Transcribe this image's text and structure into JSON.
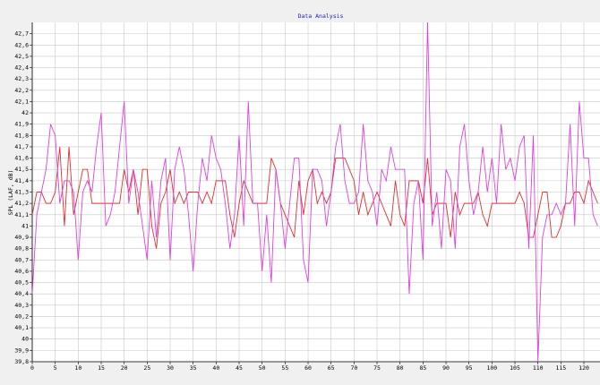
{
  "chart_data": {
    "type": "line",
    "title": "Data Analysis",
    "y_label": "SPL (LAF, dB)",
    "x": [
      0,
      1,
      2,
      3,
      4,
      5,
      6,
      7,
      8,
      9,
      10,
      11,
      12,
      13,
      14,
      15,
      16,
      17,
      18,
      19,
      20,
      21,
      22,
      23,
      24,
      25,
      26,
      27,
      28,
      29,
      30,
      31,
      32,
      33,
      34,
      35,
      36,
      37,
      38,
      39,
      40,
      41,
      42,
      43,
      44,
      45,
      46,
      47,
      48,
      49,
      50,
      51,
      52,
      53,
      54,
      55,
      56,
      57,
      58,
      59,
      60,
      61,
      62,
      63,
      64,
      65,
      66,
      67,
      68,
      69,
      70,
      71,
      72,
      73,
      74,
      75,
      76,
      77,
      78,
      79,
      80,
      81,
      82,
      83,
      84,
      85,
      86,
      87,
      88,
      89,
      90,
      91,
      92,
      93,
      94,
      95,
      96,
      97,
      98,
      99,
      100,
      101,
      102,
      103,
      104,
      105,
      106,
      107,
      108,
      109,
      110,
      111,
      112,
      113,
      114,
      115,
      116,
      117,
      118,
      119,
      120,
      121,
      122,
      123
    ],
    "series": [
      {
        "color": "#e040e0",
        "values": [
          40.4,
          41.1,
          41.3,
          41.5,
          41.9,
          41.8,
          41.2,
          41.4,
          41.4,
          41.3,
          40.7,
          41.3,
          41.4,
          41.3,
          41.7,
          42.0,
          41.0,
          41.1,
          41.3,
          41.7,
          42.1,
          41.2,
          41.5,
          41.3,
          41.0,
          40.7,
          41.4,
          40.9,
          41.4,
          41.6,
          40.7,
          41.5,
          41.7,
          41.5,
          41.1,
          40.6,
          41.2,
          41.6,
          41.4,
          41.8,
          41.6,
          41.5,
          41.2,
          40.8,
          41.1,
          41.8,
          41.0,
          42.1,
          41.2,
          41.2,
          40.6,
          41.1,
          40.5,
          41.5,
          41.2,
          40.8,
          41.2,
          41.6,
          41.6,
          40.7,
          40.5,
          41.5,
          41.5,
          41.4,
          41.0,
          41.3,
          41.7,
          41.9,
          41.4,
          41.2,
          41.2,
          41.3,
          41.9,
          41.4,
          41.3,
          41.0,
          41.5,
          41.4,
          41.7,
          41.5,
          41.5,
          41.5,
          40.4,
          41.2,
          41.4,
          40.7,
          42.8,
          41.0,
          41.3,
          40.8,
          41.5,
          41.4,
          40.8,
          41.7,
          41.9,
          41.4,
          41.1,
          41.3,
          41.7,
          41.3,
          41.6,
          41.2,
          41.9,
          41.5,
          41.6,
          41.4,
          41.7,
          41.8,
          40.8,
          41.8,
          39.8,
          40.9,
          41.1,
          41.1,
          41.2,
          41.1,
          41.2,
          41.9,
          41.0,
          42.1,
          41.6,
          41.6,
          41.1,
          41.0
        ]
      },
      {
        "color": "#e03030",
        "values": [
          41.1,
          41.3,
          41.3,
          41.2,
          41.2,
          41.3,
          41.7,
          41.0,
          41.7,
          41.1,
          41.3,
          41.5,
          41.5,
          41.2,
          41.2,
          41.2,
          41.2,
          41.2,
          41.2,
          41.2,
          41.5,
          41.3,
          41.5,
          41.1,
          41.5,
          41.5,
          41.0,
          40.8,
          41.2,
          41.3,
          41.5,
          41.2,
          41.3,
          41.2,
          41.3,
          41.3,
          41.3,
          41.2,
          41.3,
          41.2,
          41.4,
          41.4,
          41.4,
          41.1,
          40.9,
          41.2,
          41.4,
          41.3,
          41.2,
          41.2,
          41.2,
          41.2,
          41.6,
          41.5,
          41.2,
          41.1,
          41.0,
          40.9,
          41.4,
          41.1,
          41.4,
          41.5,
          41.2,
          41.3,
          41.2,
          41.3,
          41.6,
          41.6,
          41.6,
          41.5,
          41.4,
          41.1,
          41.3,
          41.1,
          41.2,
          41.3,
          41.2,
          41.1,
          41.0,
          41.4,
          41.1,
          41.0,
          41.4,
          41.4,
          41.4,
          41.2,
          41.6,
          41.1,
          41.2,
          41.2,
          41.2,
          40.9,
          41.3,
          41.1,
          41.2,
          41.2,
          41.2,
          41.3,
          41.1,
          41.0,
          41.2,
          41.2,
          41.2,
          41.2,
          41.2,
          41.2,
          41.3,
          41.2,
          40.9,
          40.9,
          41.1,
          41.3,
          41.3,
          40.9,
          40.9,
          41.0,
          41.2,
          41.2,
          41.3,
          41.3,
          41.2,
          41.4,
          41.3,
          41.2
        ]
      }
    ],
    "xlim": [
      0,
      123.5
    ],
    "xticks": [
      0,
      5,
      10,
      15,
      20,
      25,
      30,
      35,
      40,
      45,
      50,
      55,
      60,
      65,
      70,
      75,
      80,
      85,
      90,
      95,
      100,
      105,
      110,
      115,
      120
    ],
    "ylim": [
      39.8,
      42.8
    ],
    "yticks": [
      {
        "value": 39.8,
        "label": "39,8"
      },
      {
        "value": 39.9,
        "label": "39,9"
      },
      40,
      {
        "value": 40.1,
        "label": "40,1"
      },
      {
        "value": 40.2,
        "label": "40,2"
      },
      {
        "value": 40.3,
        "label": "40,3"
      },
      {
        "value": 40.4,
        "label": "40,4"
      },
      {
        "value": 40.5,
        "label": "40,5"
      },
      {
        "value": 40.6,
        "label": "40,6"
      },
      {
        "value": 40.7,
        "label": "40,7"
      },
      {
        "value": 40.8,
        "label": "40,8"
      },
      {
        "value": 40.9,
        "label": "40,9"
      },
      41,
      {
        "value": 41.1,
        "label": "41,1"
      },
      {
        "value": 41.2,
        "label": "41,2"
      },
      {
        "value": 41.3,
        "label": "41,3"
      },
      {
        "value": 41.4,
        "label": "41,4"
      },
      {
        "value": 41.5,
        "label": "41,5"
      },
      {
        "value": 41.6,
        "label": "41,6"
      },
      {
        "value": 41.7,
        "label": "41,7"
      },
      {
        "value": 41.8,
        "label": "41,8"
      },
      {
        "value": 41.9,
        "label": "41,9"
      },
      42,
      {
        "value": 42.1,
        "label": "42,1"
      },
      {
        "value": 42.2,
        "label": "42,2"
      },
      {
        "value": 42.3,
        "label": "42,3"
      },
      {
        "value": 42.4,
        "label": "42,4"
      },
      {
        "value": 42.5,
        "label": "42,5"
      },
      {
        "value": 42.6,
        "label": "42,6"
      },
      {
        "value": 42.7,
        "label": "42,7"
      }
    ],
    "grid": true
  }
}
